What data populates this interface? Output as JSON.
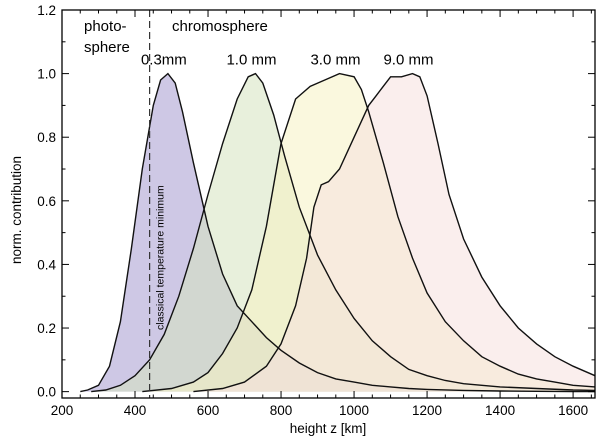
{
  "chart_data": {
    "type": "area",
    "xlabel": "height z [km]",
    "ylabel": "norm. contribution",
    "xlim": [
      200,
      1660
    ],
    "ylim": [
      -0.02,
      1.2
    ],
    "xticks": [
      200,
      400,
      600,
      800,
      1000,
      1200,
      1400,
      1600
    ],
    "yticks": [
      0.0,
      0.2,
      0.4,
      0.6,
      0.8,
      1.0,
      1.2
    ],
    "ytick_labels": [
      "0.0",
      "0.2",
      "0.4",
      "0.6",
      "0.8",
      "1.0",
      "1.2"
    ],
    "grid": false,
    "vertical_line": {
      "x": 440,
      "style": "dashed",
      "label": "classical temperature minimum"
    },
    "region_labels": {
      "left_line1": "photo-",
      "left_line2": "sphere",
      "right": "chromosphere"
    },
    "series": [
      {
        "name": "0.3mm",
        "color": "#a59bd0",
        "x": [
          250,
          270,
          300,
          330,
          360,
          390,
          420,
          450,
          470,
          490,
          510,
          530,
          560,
          600,
          640,
          680,
          720,
          760,
          800,
          850,
          900,
          950,
          1000,
          1050,
          1100,
          1150,
          1200,
          1300,
          1400,
          1500,
          1600,
          1660
        ],
        "y": [
          0.0,
          0.005,
          0.02,
          0.08,
          0.22,
          0.45,
          0.7,
          0.9,
          0.98,
          1.0,
          0.97,
          0.88,
          0.72,
          0.52,
          0.37,
          0.27,
          0.22,
          0.17,
          0.13,
          0.09,
          0.06,
          0.04,
          0.03,
          0.02,
          0.015,
          0.01,
          0.007,
          0.004,
          0.002,
          0.001,
          0.0,
          0.0
        ]
      },
      {
        "name": "1.0 mm",
        "color": "#d6e4bf",
        "x": [
          280,
          320,
          360,
          400,
          440,
          480,
          520,
          560,
          600,
          640,
          680,
          710,
          730,
          750,
          780,
          810,
          850,
          900,
          950,
          1000,
          1050,
          1100,
          1150,
          1200,
          1250,
          1300,
          1400,
          1500,
          1600,
          1660
        ],
        "y": [
          0.0,
          0.005,
          0.02,
          0.05,
          0.1,
          0.18,
          0.3,
          0.45,
          0.62,
          0.78,
          0.92,
          0.99,
          1.0,
          0.97,
          0.87,
          0.74,
          0.58,
          0.43,
          0.32,
          0.23,
          0.16,
          0.11,
          0.07,
          0.05,
          0.035,
          0.025,
          0.015,
          0.01,
          0.005,
          0.004
        ]
      },
      {
        "name": "3.0 mm",
        "color": "#f5f2c2",
        "x": [
          420,
          500,
          560,
          600,
          640,
          680,
          720,
          760,
          800,
          840,
          880,
          920,
          960,
          1000,
          1020,
          1040,
          1080,
          1120,
          1160,
          1200,
          1250,
          1300,
          1350,
          1400,
          1450,
          1500,
          1550,
          1600,
          1660
        ],
        "y": [
          0.0,
          0.01,
          0.03,
          0.06,
          0.12,
          0.2,
          0.32,
          0.52,
          0.78,
          0.92,
          0.96,
          0.98,
          1.0,
          0.99,
          0.95,
          0.88,
          0.72,
          0.55,
          0.42,
          0.31,
          0.22,
          0.16,
          0.11,
          0.08,
          0.055,
          0.04,
          0.03,
          0.02,
          0.015
        ]
      },
      {
        "name": "9.0 mm",
        "color": "#f5e0de",
        "x": [
          560,
          640,
          700,
          760,
          800,
          840,
          870,
          890,
          910,
          930,
          960,
          1000,
          1040,
          1060,
          1080,
          1100,
          1130,
          1160,
          1180,
          1200,
          1230,
          1260,
          1300,
          1350,
          1400,
          1450,
          1500,
          1550,
          1600,
          1660
        ],
        "y": [
          0.0,
          0.01,
          0.03,
          0.08,
          0.15,
          0.27,
          0.42,
          0.58,
          0.65,
          0.66,
          0.7,
          0.8,
          0.9,
          0.93,
          0.96,
          0.99,
          0.99,
          1.0,
          0.99,
          0.93,
          0.78,
          0.62,
          0.48,
          0.36,
          0.27,
          0.2,
          0.15,
          0.11,
          0.08,
          0.05
        ]
      }
    ]
  }
}
